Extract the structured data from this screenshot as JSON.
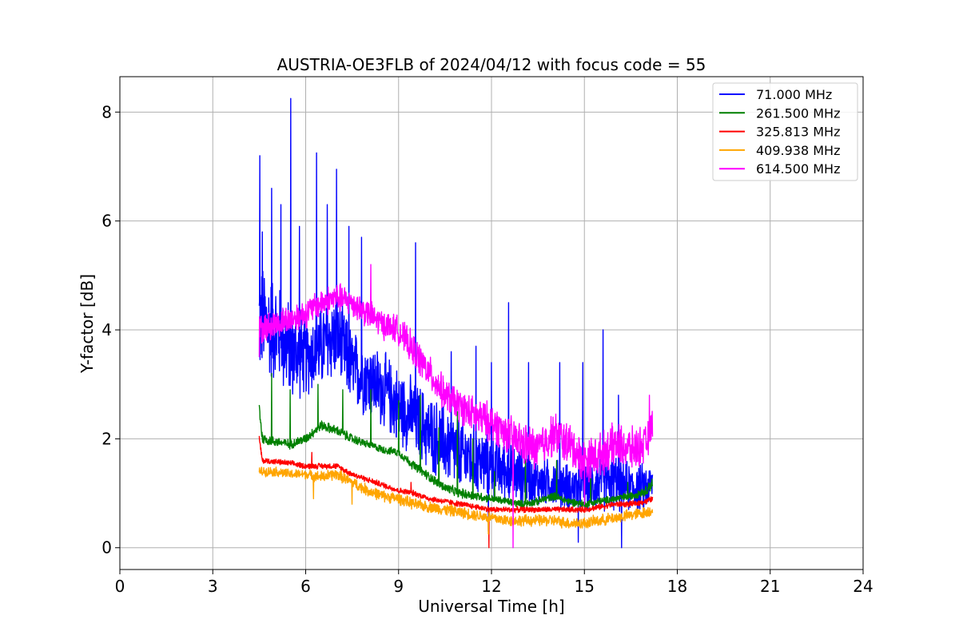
{
  "chart_data": {
    "type": "line",
    "title": "AUSTRIA-OE3FLB of 2024/04/12 with focus code = 55",
    "xlabel": "Universal Time [h]",
    "ylabel": "Y-factor [dB]",
    "xlim": [
      0,
      24
    ],
    "ylim": [
      -0.4,
      8.65
    ],
    "xticks": [
      0,
      3,
      6,
      9,
      12,
      15,
      18,
      21,
      24
    ],
    "xtick_labels": [
      "0",
      "3",
      "6",
      "9",
      "12",
      "15",
      "18",
      "21",
      "24"
    ],
    "yticks": [
      0,
      2,
      4,
      6,
      8
    ],
    "ytick_labels": [
      "0",
      "2",
      "4",
      "6",
      "8"
    ],
    "grid": true,
    "legend_position": "top-right",
    "series": [
      {
        "name": " 71.000 MHz",
        "color": "#0000ff",
        "x": [
          4.5,
          5.0,
          5.5,
          6.0,
          6.5,
          7.0,
          7.5,
          8.0,
          8.5,
          9.0,
          9.5,
          10.0,
          10.5,
          11.0,
          11.5,
          12.0,
          12.5,
          13.0,
          13.5,
          14.0,
          14.5,
          15.0,
          15.5,
          16.0,
          16.5,
          17.0,
          17.2
        ],
        "y": [
          4.2,
          4.0,
          3.6,
          3.5,
          3.7,
          3.9,
          3.3,
          3.1,
          2.9,
          2.6,
          2.4,
          2.1,
          1.9,
          1.7,
          1.6,
          1.5,
          1.4,
          1.3,
          1.2,
          1.2,
          1.1,
          1.1,
          1.2,
          1.2,
          1.1,
          1.1,
          1.2
        ],
        "spread": [
          1.2,
          1.1,
          1.0,
          0.8,
          0.9,
          0.9,
          0.8,
          0.8,
          0.8,
          0.8,
          0.8,
          0.8,
          0.8,
          0.8,
          0.7,
          0.7,
          0.6,
          0.6,
          0.5,
          0.5,
          0.5,
          0.5,
          0.6,
          0.6,
          0.5,
          0.5,
          0.4
        ],
        "spikes": [
          [
            4.52,
            7.2
          ],
          [
            4.6,
            5.8
          ],
          [
            4.9,
            6.6
          ],
          [
            5.2,
            6.3
          ],
          [
            5.52,
            8.25
          ],
          [
            5.8,
            5.9
          ],
          [
            6.35,
            7.25
          ],
          [
            6.7,
            6.3
          ],
          [
            7.0,
            6.95
          ],
          [
            7.4,
            5.9
          ],
          [
            7.8,
            5.7
          ],
          [
            9.55,
            5.6
          ],
          [
            10.7,
            3.6
          ],
          [
            11.5,
            3.7
          ],
          [
            12.0,
            3.4
          ],
          [
            12.55,
            4.5
          ],
          [
            13.2,
            3.4
          ],
          [
            14.2,
            3.4
          ],
          [
            14.95,
            3.4
          ],
          [
            15.6,
            4.0
          ],
          [
            16.1,
            2.8
          ],
          [
            17.1,
            1.4
          ],
          [
            11.9,
            0.3
          ],
          [
            14.8,
            0.1
          ],
          [
            16.2,
            0.0
          ]
        ]
      },
      {
        "name": "261.500 MHz",
        "color": "#008000",
        "x": [
          4.5,
          4.6,
          5.0,
          5.5,
          6.0,
          6.5,
          7.0,
          7.5,
          8.0,
          8.5,
          9.0,
          9.5,
          10.0,
          10.5,
          11.0,
          11.5,
          12.0,
          12.5,
          13.0,
          13.5,
          14.0,
          14.5,
          15.0,
          15.5,
          16.0,
          16.5,
          17.0,
          17.2
        ],
        "y": [
          2.6,
          2.0,
          1.95,
          1.9,
          2.0,
          2.25,
          2.15,
          2.0,
          1.9,
          1.8,
          1.75,
          1.5,
          1.3,
          1.1,
          1.0,
          0.95,
          0.9,
          0.85,
          0.8,
          0.85,
          0.95,
          0.85,
          0.8,
          0.85,
          0.9,
          0.95,
          1.05,
          1.2
        ],
        "spread": [
          0.15,
          0.12,
          0.1,
          0.1,
          0.1,
          0.1,
          0.1,
          0.1,
          0.08,
          0.08,
          0.08,
          0.1,
          0.1,
          0.1,
          0.1,
          0.1,
          0.08,
          0.08,
          0.08,
          0.08,
          0.08,
          0.08,
          0.08,
          0.08,
          0.08,
          0.08,
          0.1,
          0.15
        ],
        "spikes": [
          [
            4.9,
            3.2
          ],
          [
            5.5,
            2.9
          ],
          [
            6.4,
            3.0
          ],
          [
            7.2,
            2.9
          ],
          [
            8.1,
            2.9
          ],
          [
            9.0,
            2.7
          ],
          [
            9.7,
            2.8
          ],
          [
            10.3,
            2.2
          ],
          [
            10.9,
            2.5
          ],
          [
            11.4,
            2.0
          ],
          [
            12.1,
            1.4
          ],
          [
            13.1,
            1.6
          ],
          [
            14.1,
            1.6
          ],
          [
            15.2,
            1.4
          ],
          [
            16.4,
            1.2
          ]
        ]
      },
      {
        "name": "325.813 MHz",
        "color": "#ff0000",
        "x": [
          4.5,
          4.6,
          5.0,
          5.5,
          6.0,
          6.5,
          7.0,
          7.5,
          8.0,
          8.5,
          9.0,
          9.5,
          10.0,
          10.5,
          11.0,
          11.5,
          12.0,
          12.5,
          13.0,
          13.5,
          14.0,
          14.5,
          15.0,
          15.5,
          16.0,
          16.5,
          17.0,
          17.2
        ],
        "y": [
          2.0,
          1.6,
          1.58,
          1.55,
          1.5,
          1.5,
          1.5,
          1.35,
          1.25,
          1.15,
          1.05,
          1.0,
          0.9,
          0.85,
          0.8,
          0.75,
          0.7,
          0.7,
          0.7,
          0.7,
          0.7,
          0.7,
          0.7,
          0.75,
          0.8,
          0.8,
          0.85,
          0.9
        ],
        "spread": [
          0.08,
          0.06,
          0.06,
          0.06,
          0.06,
          0.06,
          0.06,
          0.06,
          0.06,
          0.06,
          0.06,
          0.06,
          0.06,
          0.06,
          0.06,
          0.06,
          0.06,
          0.06,
          0.06,
          0.06,
          0.06,
          0.06,
          0.06,
          0.06,
          0.06,
          0.06,
          0.06,
          0.06
        ],
        "spikes": [
          [
            11.92,
            0.0
          ],
          [
            6.2,
            1.75
          ],
          [
            9.4,
            1.2
          ]
        ]
      },
      {
        "name": "409.938 MHz",
        "color": "#ffa500",
        "x": [
          4.5,
          5.0,
          5.5,
          6.0,
          6.5,
          7.0,
          7.5,
          8.0,
          8.5,
          9.0,
          9.5,
          10.0,
          10.5,
          11.0,
          11.5,
          12.0,
          12.5,
          13.0,
          13.5,
          14.0,
          14.5,
          15.0,
          15.5,
          16.0,
          16.5,
          17.0,
          17.2
        ],
        "y": [
          1.4,
          1.4,
          1.35,
          1.35,
          1.3,
          1.35,
          1.2,
          1.05,
          0.95,
          0.9,
          0.8,
          0.75,
          0.7,
          0.65,
          0.6,
          0.55,
          0.5,
          0.5,
          0.5,
          0.5,
          0.45,
          0.45,
          0.5,
          0.55,
          0.6,
          0.65,
          0.7
        ],
        "spread": [
          0.1,
          0.1,
          0.1,
          0.1,
          0.12,
          0.12,
          0.12,
          0.12,
          0.12,
          0.12,
          0.12,
          0.12,
          0.12,
          0.12,
          0.12,
          0.12,
          0.12,
          0.12,
          0.12,
          0.12,
          0.12,
          0.12,
          0.12,
          0.12,
          0.12,
          0.12,
          0.12
        ],
        "spikes": [
          [
            6.25,
            0.9
          ],
          [
            7.5,
            0.8
          ],
          [
            11.9,
            0.25
          ]
        ]
      },
      {
        "name": "614.500 MHz",
        "color": "#ff00ff",
        "x": [
          4.5,
          5.0,
          5.5,
          6.0,
          6.5,
          7.0,
          7.5,
          8.0,
          8.5,
          9.0,
          9.5,
          10.0,
          10.5,
          11.0,
          11.5,
          12.0,
          12.5,
          13.0,
          13.5,
          14.0,
          14.5,
          15.0,
          15.5,
          16.0,
          16.5,
          17.0,
          17.2
        ],
        "y": [
          4.0,
          4.1,
          4.2,
          4.3,
          4.5,
          4.6,
          4.5,
          4.3,
          4.1,
          4.0,
          3.6,
          3.2,
          2.8,
          2.6,
          2.4,
          2.3,
          2.1,
          1.9,
          1.8,
          2.1,
          1.9,
          1.6,
          1.7,
          1.9,
          1.8,
          1.9,
          2.3
        ],
        "spread": [
          0.3,
          0.3,
          0.3,
          0.3,
          0.3,
          0.3,
          0.3,
          0.3,
          0.3,
          0.3,
          0.35,
          0.35,
          0.35,
          0.35,
          0.4,
          0.4,
          0.4,
          0.45,
          0.45,
          0.45,
          0.45,
          0.45,
          0.45,
          0.45,
          0.45,
          0.4,
          0.35
        ],
        "spikes": [
          [
            8.1,
            5.2
          ],
          [
            4.5,
            3.5
          ],
          [
            12.7,
            0.0
          ],
          [
            15.0,
            0.8
          ],
          [
            17.1,
            2.8
          ]
        ]
      }
    ]
  }
}
